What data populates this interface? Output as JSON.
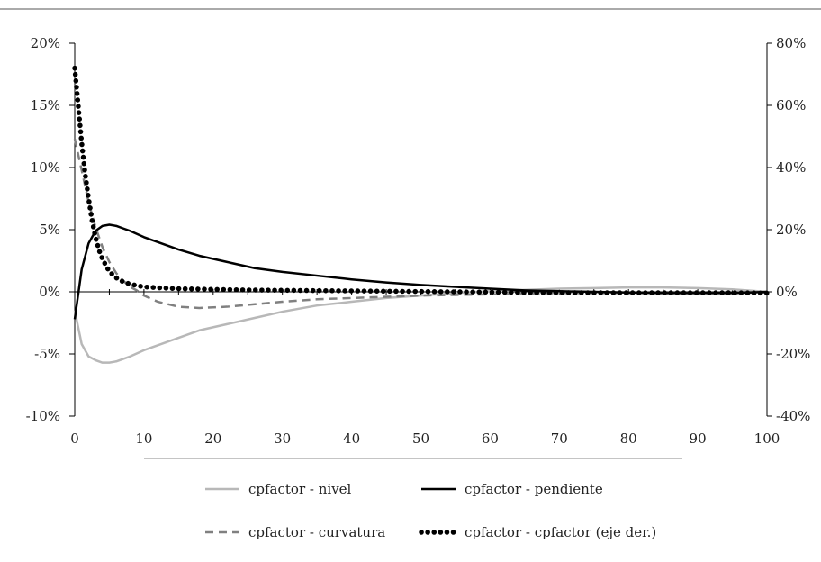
{
  "chart_data": {
    "type": "line",
    "title": "",
    "xlabel": "",
    "ylabel": "",
    "x_ticks": [
      "0",
      "10",
      "20",
      "30",
      "40",
      "50",
      "60",
      "70",
      "80",
      "90",
      "100"
    ],
    "xlim": [
      0,
      100
    ],
    "ylim": [
      -10,
      20
    ],
    "y2lim": [
      -40,
      80
    ],
    "y_ticks": [
      "-10%",
      "-5%",
      "0%",
      "5%",
      "10%",
      "15%",
      "20%"
    ],
    "y2_ticks": [
      "-40%",
      "-20%",
      "0%",
      "20%",
      "40%",
      "60%",
      "80%"
    ],
    "legend_position": "bottom",
    "grid": false,
    "series": [
      {
        "name": "cpfactor - nivel",
        "axis": "left",
        "style": "solid",
        "color": "#b8b8b8",
        "x": [
          0,
          1,
          2,
          3,
          4,
          5,
          6,
          7,
          8,
          10,
          12,
          15,
          18,
          22,
          26,
          30,
          35,
          40,
          45,
          50,
          55,
          60,
          65,
          70,
          75,
          80,
          85,
          90,
          95,
          100
        ],
        "y": [
          -1.5,
          -4.2,
          -5.2,
          -5.5,
          -5.7,
          -5.7,
          -5.6,
          -5.4,
          -5.2,
          -4.7,
          -4.3,
          -3.7,
          -3.1,
          -2.6,
          -2.1,
          -1.6,
          -1.1,
          -0.8,
          -0.5,
          -0.3,
          -0.1,
          0.05,
          0.15,
          0.25,
          0.3,
          0.35,
          0.35,
          0.3,
          0.2,
          0.0
        ]
      },
      {
        "name": "cpfactor - pendiente",
        "axis": "left",
        "style": "solid",
        "color": "#000000",
        "x": [
          0,
          1,
          2,
          3,
          4,
          5,
          6,
          7,
          8,
          10,
          12,
          15,
          18,
          22,
          26,
          30,
          35,
          40,
          45,
          50,
          55,
          60,
          65,
          70,
          75,
          80,
          85,
          90,
          95,
          100
        ],
        "y": [
          -2.2,
          1.8,
          3.9,
          4.9,
          5.3,
          5.4,
          5.3,
          5.1,
          4.9,
          4.4,
          4.0,
          3.4,
          2.9,
          2.4,
          1.9,
          1.6,
          1.3,
          1.0,
          0.75,
          0.55,
          0.4,
          0.25,
          0.12,
          0.05,
          0.0,
          -0.05,
          -0.1,
          -0.1,
          -0.1,
          0.0
        ]
      },
      {
        "name": "cpfactor - curvatura",
        "axis": "left",
        "style": "dashed",
        "color": "#808080",
        "x": [
          0,
          1,
          2,
          3,
          4,
          5,
          6,
          7,
          8,
          9,
          10,
          12,
          15,
          18,
          22,
          26,
          30,
          35,
          40,
          45,
          50,
          55,
          60,
          65,
          70,
          75,
          80,
          85,
          90,
          95,
          100
        ],
        "y": [
          12.3,
          9.8,
          7.2,
          5.2,
          3.6,
          2.4,
          1.5,
          0.9,
          0.4,
          0.1,
          -0.3,
          -0.8,
          -1.2,
          -1.3,
          -1.2,
          -1.0,
          -0.8,
          -0.6,
          -0.5,
          -0.4,
          -0.3,
          -0.25,
          -0.2,
          -0.15,
          -0.1,
          -0.1,
          -0.1,
          -0.1,
          -0.1,
          -0.1,
          -0.05
        ]
      },
      {
        "name": "cpfactor - cpfactor (eje der.)",
        "axis": "right",
        "style": "dotted",
        "color": "#000000",
        "x": [
          0,
          0.5,
          1,
          1.5,
          2,
          2.5,
          3,
          3.5,
          4,
          5,
          6,
          7,
          8,
          9,
          10,
          12,
          15,
          20,
          25,
          30,
          35,
          40,
          45,
          50,
          55,
          60,
          65,
          70,
          75,
          80,
          85,
          90,
          95,
          100
        ],
        "y": [
          72,
          60,
          48,
          38,
          30,
          23,
          17.5,
          13.5,
          10.5,
          6.5,
          4.5,
          3.2,
          2.5,
          2.0,
          1.6,
          1.3,
          1.0,
          0.8,
          0.6,
          0.5,
          0.4,
          0.3,
          0.2,
          0.1,
          0.0,
          -0.1,
          -0.2,
          -0.3,
          -0.3,
          -0.3,
          -0.3,
          -0.3,
          -0.3,
          -0.4
        ]
      }
    ]
  }
}
